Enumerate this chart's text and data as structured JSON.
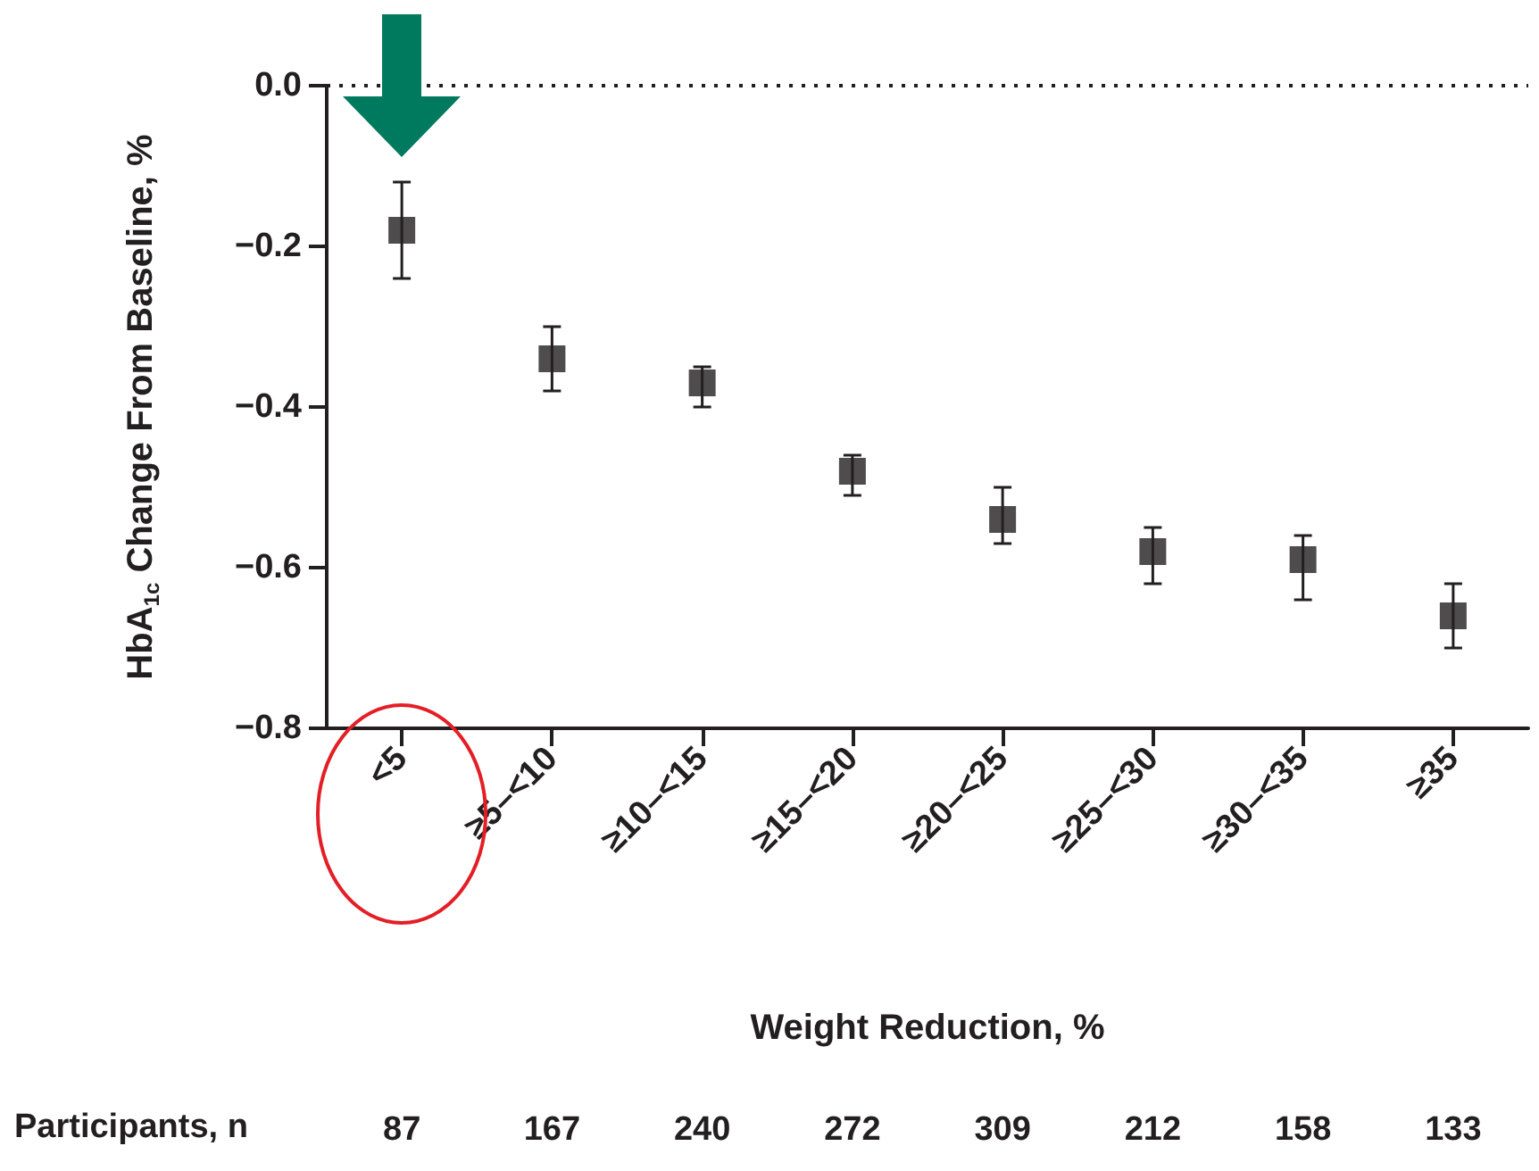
{
  "chart_data": {
    "type": "scatter",
    "xlabel": "Weight Reduction, %",
    "ylabel": "HbA$_{1c}$ Change From Baseline, %",
    "categories": [
      "<5",
      "≥5–<10",
      "≥10–<15",
      "≥15–<20",
      "≥20–<25",
      "≥25–<30",
      "≥30–<35",
      "≥35"
    ],
    "series": [
      {
        "color": "#231f20",
        "values": [
          -0.18,
          -0.34,
          -0.37,
          -0.48,
          -0.54,
          -0.58,
          -0.59,
          -0.66
        ],
        "errors": [
          [
            -0.24,
            -0.12
          ],
          [
            -0.38,
            -0.3
          ],
          [
            -0.4,
            -0.35
          ],
          [
            -0.51,
            -0.46
          ],
          [
            -0.57,
            -0.5
          ],
          [
            -0.62,
            -0.55
          ],
          [
            -0.64,
            -0.56
          ],
          [
            -0.7,
            -0.62
          ]
        ]
      }
    ],
    "ylim": [
      -0.8,
      0
    ],
    "yticks": [
      {
        "value": 0,
        "label": "0.0"
      },
      {
        "value": -0.2,
        "label": "−0.2"
      },
      {
        "value": -0.4,
        "label": "−0.4"
      },
      {
        "value": -0.6,
        "label": "−0.6"
      },
      {
        "value": -0.8,
        "label": "−0.8"
      }
    ],
    "marker": "square",
    "grid": false,
    "ref_lines": [
      {
        "axis": "y",
        "value": 0,
        "color": "#231f20",
        "line_style": "dotted"
      }
    ],
    "annotations": [
      "Participants, n",
      "87",
      "167",
      "240",
      "272",
      "309",
      "212",
      "158",
      "133"
    ]
  }
}
